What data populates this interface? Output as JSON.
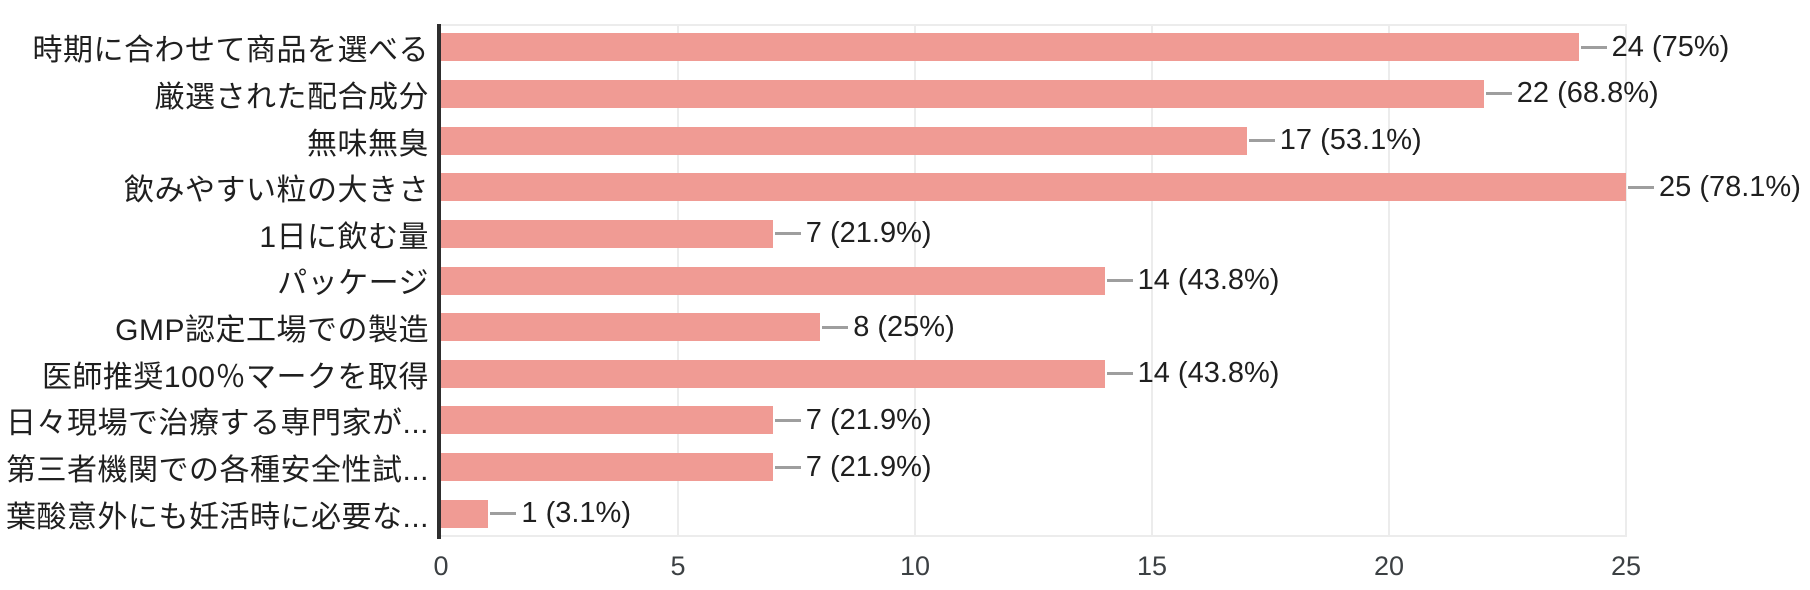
{
  "chart_data": {
    "type": "bar",
    "orientation": "horizontal",
    "title": "",
    "xlabel": "",
    "ylabel": "",
    "xlim": [
      0,
      25
    ],
    "x_ticks": [
      0,
      5,
      10,
      15,
      20,
      25
    ],
    "grid": true,
    "legend": false,
    "categories": [
      "時期に合わせて商品を選べる",
      "厳選された配合成分",
      "無味無臭",
      "飲みやすい粒の大きさ",
      "1日に飲む量",
      "パッケージ",
      "GMP認定工場での製造",
      "医師推奨100％マークを取得",
      "日々現場で治療する専門家が...",
      "第三者機関での各種安全性試...",
      "葉酸意外にも妊活時に必要な..."
    ],
    "values": [
      24,
      22,
      17,
      25,
      7,
      14,
      8,
      14,
      7,
      7,
      1
    ],
    "value_labels": [
      "24 (75%)",
      "22 (68.8%)",
      "17 (53.1%)",
      "25 (78.1%)",
      "7 (21.9%)",
      "14 (43.8%)",
      "8 (25%)",
      "14 (43.8%)",
      "7 (21.9%)",
      "7 (21.9%)",
      "1 (3.1%)"
    ]
  },
  "colors": {
    "bar": "#f09b94",
    "connector": "#9e9e9e",
    "axis": "#2e2e2e",
    "grid": "#ececec",
    "category_label": "#1f1f1f",
    "value_label": "#1f1f1f",
    "tick_label": "#3c4043",
    "background": "#ffffff"
  }
}
